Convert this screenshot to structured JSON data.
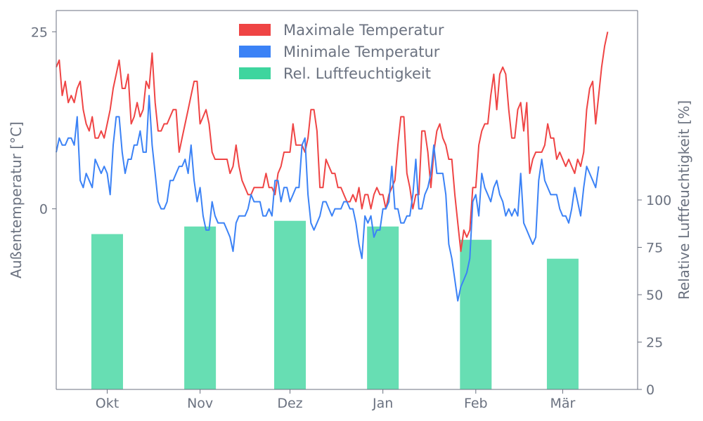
{
  "chart_data": {
    "type": "line+bar",
    "xlabel": "",
    "ylabel_left": "Außentemperatur [°C]",
    "ylabel_right": "Relative Luftfeuchtigkeit [%]",
    "ylim_left": [
      -25.5,
      28
    ],
    "ylim_right": [
      0,
      200
    ],
    "yticks_left": [
      0,
      25
    ],
    "yticks_right": [
      0,
      25,
      50,
      75,
      100
    ],
    "x_start_date": "2015-09-14",
    "x_end_date": "2016-03-26",
    "month_ticks": [
      {
        "label": "Okt",
        "date": "2015-10-01"
      },
      {
        "label": "Nov",
        "date": "2015-11-01"
      },
      {
        "label": "Dez",
        "date": "2015-12-01"
      },
      {
        "label": "Jan",
        "date": "2016-01-01"
      },
      {
        "label": "Feb",
        "date": "2016-02-01"
      },
      {
        "label": "Mär",
        "date": "2016-03-01"
      }
    ],
    "legend": {
      "placement": "top-center"
    },
    "series": [
      {
        "name": "Maximale Temperatur",
        "type": "line",
        "axis": "left",
        "color": "#ef4444",
        "x_start": "2015-09-14",
        "step_days": 1,
        "values": [
          20,
          21,
          16,
          18,
          15,
          16,
          15,
          17,
          18,
          14,
          12,
          11,
          13,
          10,
          10,
          11,
          10,
          12,
          14,
          17,
          19,
          21,
          17,
          17,
          19,
          12,
          13,
          15,
          13,
          14,
          18,
          17,
          22,
          15,
          11,
          11,
          12,
          12,
          13,
          14,
          14,
          8,
          10,
          12,
          14,
          16,
          18,
          18,
          12,
          13,
          14,
          12,
          8,
          7,
          7,
          7,
          7,
          7,
          5,
          6,
          9,
          6,
          4,
          3,
          2,
          2,
          3,
          3,
          3,
          3,
          5,
          3,
          3,
          2,
          5,
          6,
          8,
          8,
          8,
          12,
          9,
          9,
          9,
          8,
          10,
          14,
          14,
          11,
          3,
          3,
          7,
          6,
          5,
          5,
          3,
          3,
          2,
          1,
          1,
          2,
          1,
          3,
          0,
          2,
          2,
          0,
          2,
          3,
          2,
          2,
          0,
          2,
          3,
          4,
          9,
          13,
          13,
          5,
          3,
          0,
          2,
          2,
          11,
          11,
          8,
          3,
          8,
          11,
          12,
          10,
          9,
          7,
          7,
          2,
          -2,
          -6,
          -3,
          -4,
          -3,
          3,
          3,
          9,
          11,
          12,
          12,
          16,
          19,
          14,
          19,
          20,
          19,
          14,
          10,
          10,
          14,
          15,
          11,
          15,
          5,
          7,
          8,
          8,
          8,
          9,
          12,
          10,
          10,
          7,
          8,
          7,
          6,
          7,
          6,
          5,
          7,
          6,
          8,
          14,
          17,
          18,
          12,
          16,
          20,
          23,
          25
        ]
      },
      {
        "name": "Minimale Temperatur",
        "type": "line",
        "axis": "left",
        "color": "#3b82f6",
        "x_start": "2015-09-14",
        "step_days": 1,
        "values": [
          8,
          10,
          9,
          9,
          10,
          10,
          9,
          13,
          4,
          3,
          5,
          4,
          3,
          7,
          6,
          5,
          6,
          5,
          2,
          9,
          13,
          13,
          8,
          5,
          7,
          7,
          9,
          9,
          11,
          8,
          8,
          16,
          9,
          5,
          1,
          0,
          0,
          1,
          4,
          4,
          5,
          6,
          6,
          7,
          5,
          9,
          4,
          1,
          3,
          -1,
          -3,
          -3,
          1,
          -1,
          -2,
          -2,
          -2,
          -3,
          -4,
          -6,
          -2,
          -1,
          -1,
          -1,
          0,
          2,
          1,
          1,
          1,
          -1,
          -1,
          0,
          -1,
          4,
          4,
          1,
          3,
          3,
          1,
          2,
          3,
          3,
          9,
          10,
          2,
          -2,
          -3,
          -2,
          -1,
          1,
          1,
          0,
          -1,
          0,
          0,
          0,
          1,
          1,
          0,
          0,
          -2,
          -5,
          -7,
          -1,
          -2,
          -1,
          -4,
          -3,
          -3,
          0,
          0,
          1,
          6,
          0,
          0,
          -2,
          -2,
          -1,
          -1,
          2,
          7,
          0,
          0,
          2,
          3,
          5,
          9,
          5,
          5,
          5,
          2,
          -5,
          -7,
          -10,
          -13,
          -11,
          -10,
          -9,
          -7,
          1,
          2,
          -1,
          5,
          3,
          2,
          1,
          3,
          4,
          2,
          1,
          -1,
          0,
          -1,
          0,
          -1,
          5,
          -2,
          -3,
          -4,
          -5,
          -4,
          4,
          7,
          4,
          3,
          2,
          2,
          2,
          0,
          -1,
          -1,
          -2,
          0,
          3,
          1,
          -1,
          3,
          6,
          5,
          4,
          3,
          6
        ]
      },
      {
        "name": "Rel. Luftfeuchtigkeit",
        "type": "bar",
        "axis": "right",
        "color": "#34d399",
        "months": [
          "Okt",
          "Nov",
          "Dez",
          "Jan",
          "Feb",
          "Mär"
        ],
        "values": [
          82,
          86,
          89,
          86,
          79,
          69
        ]
      }
    ]
  }
}
